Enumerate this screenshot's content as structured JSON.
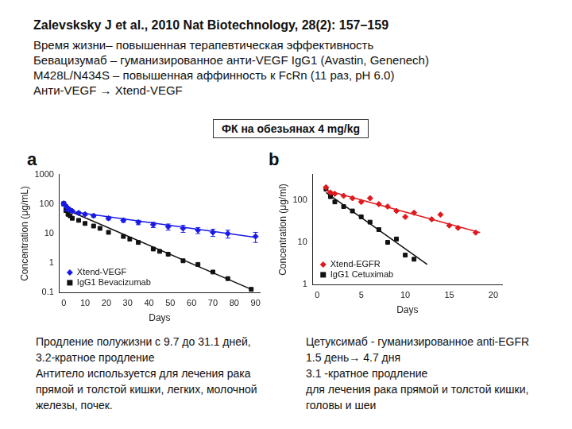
{
  "slide": {
    "header": [
      "Zalevsksky J et al., 2010 Nat Biotechnology, 28(2): 157–159",
      "Время жизни– повышенная терапевтическая эффективность",
      "Бевацизумаб – гуманизированное  анти-VEGF IgG1 (Avastin, Genenech)",
      "M428L/N434S – повышенная аффинность к FcRn (11 раз, pH 6.0)",
      "Анти-VEGF → Xtend-VEGF"
    ],
    "box": "ФК на обезьянах 4 mg/kg",
    "notes_left": [
      "Продление полужизни с 9.7 до 31.1 дней,",
      "3.2-кратное продление",
      "Антитело используется для лечения рака",
      "прямой и толстой кишки, легких, молочной",
      "железы, почек."
    ],
    "notes_right": [
      "Цетуксимаб - гуманизированное anti-EGFR",
      "1.5 день→ 4.7 дня",
      "3.1 -кратное продление",
      "для лечения рака прямой и толстой кишки,",
      "головы и шеи"
    ]
  },
  "chart_data": [
    {
      "panel": "a",
      "type": "scatter",
      "log": "y",
      "xlabel": "Days",
      "ylabel": "Concentration (μg/mL)",
      "xlim": [
        -2,
        92
      ],
      "xticks": [
        0,
        10,
        20,
        30,
        40,
        50,
        60,
        70,
        80,
        90
      ],
      "ylim": [
        0.1,
        1000
      ],
      "yticks": [
        0.1,
        1,
        10,
        100,
        1000
      ],
      "grid": false,
      "legend": "lower left",
      "series": [
        {
          "name": "Xtend-VEGF",
          "color": "#1a1ae6",
          "marker": "diamond",
          "x": [
            0,
            1,
            2,
            3,
            4,
            7,
            10,
            14,
            21,
            28,
            35,
            42,
            49,
            56,
            63,
            70,
            77,
            90
          ],
          "values": [
            105,
            85,
            72,
            63,
            58,
            50,
            45,
            40,
            33,
            28,
            24,
            20,
            17,
            15,
            13,
            11,
            10,
            8
          ],
          "errors": [
            15,
            10,
            8,
            6,
            5,
            5,
            4,
            4,
            4,
            4,
            4,
            4,
            4,
            4,
            3,
            3,
            3,
            3
          ],
          "fit": {
            "x": [
              0,
              90
            ],
            "values": [
              60,
              7.5
            ]
          }
        },
        {
          "name": "IgG1 Bevacizumab",
          "color": "#111111",
          "marker": "square",
          "x": [
            0,
            1,
            2,
            3,
            4,
            7,
            10,
            14,
            17,
            21,
            28,
            31,
            35,
            42,
            45,
            49,
            56,
            63,
            70,
            77,
            88
          ],
          "values": [
            100,
            60,
            45,
            40,
            33,
            28,
            22,
            18,
            15,
            11,
            8,
            6.5,
            5,
            3,
            2.5,
            2,
            1.2,
            0.9,
            0.5,
            0.3,
            0.13
          ],
          "fit": {
            "x": [
              0,
              88
            ],
            "values": [
              70,
              0.13
            ]
          }
        }
      ]
    },
    {
      "panel": "b",
      "type": "scatter",
      "log": "y",
      "xlabel": "Days",
      "ylabel": "Concentration (μg/ml)",
      "xlim": [
        -0.5,
        21
      ],
      "xticks": [
        0,
        5,
        10,
        15,
        20
      ],
      "ylim": [
        1,
        400
      ],
      "yticks": [
        1,
        10,
        100
      ],
      "grid": false,
      "legend": "lower left",
      "series": [
        {
          "name": "Xtend-EGFR",
          "color": "#e0191e",
          "marker": "diamond",
          "x": [
            1,
            1.5,
            2,
            3,
            4,
            5,
            6,
            7,
            8,
            9,
            10,
            11,
            13,
            14,
            15,
            16,
            18
          ],
          "values": [
            200,
            150,
            140,
            125,
            110,
            90,
            110,
            80,
            70,
            55,
            40,
            50,
            35,
            45,
            25,
            22,
            17
          ],
          "fit": {
            "x": [
              1,
              18.5
            ],
            "values": [
              170,
              17
            ]
          }
        },
        {
          "name": "IgG1 Cetuximab",
          "color": "#111111",
          "marker": "square",
          "x": [
            1,
            1.5,
            2,
            3,
            4,
            5,
            6,
            7,
            8,
            9,
            10,
            11
          ],
          "values": [
            180,
            120,
            90,
            70,
            55,
            40,
            30,
            20,
            10,
            12,
            5,
            4
          ],
          "fit": {
            "x": [
              1,
              12.5
            ],
            "values": [
              150,
              3
            ]
          }
        }
      ]
    }
  ]
}
